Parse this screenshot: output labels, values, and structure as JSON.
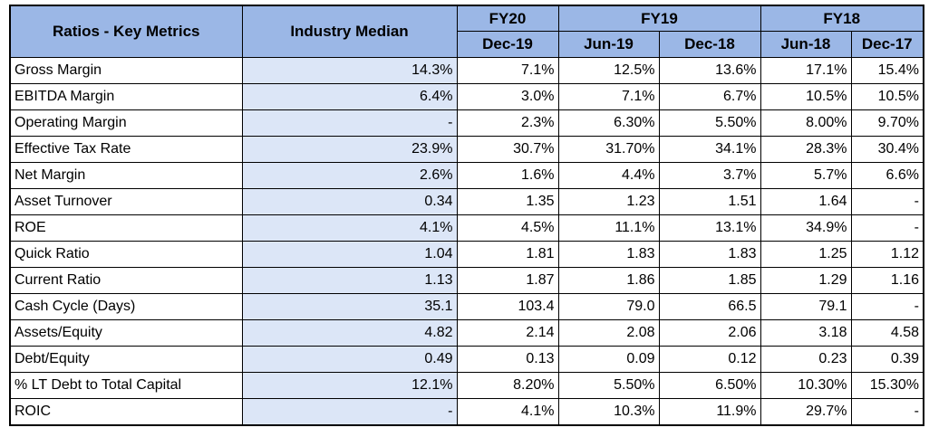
{
  "header": {
    "metric_col": "Ratios - Key Metrics",
    "industry_col": "Industry Median",
    "fiscal_years": [
      {
        "label": "FY20",
        "periods": [
          "Dec-19"
        ]
      },
      {
        "label": "FY19",
        "periods": [
          "Jun-19",
          "Dec-18"
        ]
      },
      {
        "label": "FY18",
        "periods": [
          "Jun-18",
          "Dec-17"
        ]
      }
    ]
  },
  "rows": [
    {
      "metric": "Gross Margin",
      "industry": "14.3%",
      "values": [
        "7.1%",
        "12.5%",
        "13.6%",
        "17.1%",
        "15.4%"
      ]
    },
    {
      "metric": "EBITDA Margin",
      "industry": "6.4%",
      "values": [
        "3.0%",
        "7.1%",
        "6.7%",
        "10.5%",
        "10.5%"
      ]
    },
    {
      "metric": "Operating Margin",
      "industry": "-",
      "values": [
        "2.3%",
        "6.30%",
        "5.50%",
        "8.00%",
        "9.70%"
      ]
    },
    {
      "metric": "Effective Tax Rate",
      "industry": "23.9%",
      "values": [
        "30.7%",
        "31.70%",
        "34.1%",
        "28.3%",
        "30.4%"
      ]
    },
    {
      "metric": "Net Margin",
      "industry": "2.6%",
      "values": [
        "1.6%",
        "4.4%",
        "3.7%",
        "5.7%",
        "6.6%"
      ]
    },
    {
      "metric": "Asset Turnover",
      "industry": "0.34",
      "values": [
        "1.35",
        "1.23",
        "1.51",
        "1.64",
        "-"
      ]
    },
    {
      "metric": "ROE",
      "industry": "4.1%",
      "values": [
        "4.5%",
        "11.1%",
        "13.1%",
        "34.9%",
        "-"
      ]
    },
    {
      "metric": "Quick Ratio",
      "industry": "1.04",
      "values": [
        "1.81",
        "1.83",
        "1.83",
        "1.25",
        "1.12"
      ]
    },
    {
      "metric": "Current Ratio",
      "industry": "1.13",
      "values": [
        "1.87",
        "1.86",
        "1.85",
        "1.29",
        "1.16"
      ]
    },
    {
      "metric": "Cash Cycle (Days)",
      "industry": "35.1",
      "values": [
        "103.4",
        "79.0",
        "66.5",
        "79.1",
        "-"
      ]
    },
    {
      "metric": "Assets/Equity",
      "industry": "4.82",
      "values": [
        "2.14",
        "2.08",
        "2.06",
        "3.18",
        "4.58"
      ]
    },
    {
      "metric": "Debt/Equity",
      "industry": "0.49",
      "values": [
        "0.13",
        "0.09",
        "0.12",
        "0.23",
        "0.39"
      ]
    },
    {
      "metric": "% LT Debt to Total Capital",
      "industry": "12.1%",
      "values": [
        "8.20%",
        "5.50%",
        "6.50%",
        "10.30%",
        "15.30%"
      ]
    },
    {
      "metric": "ROIC",
      "industry": "-",
      "values": [
        "4.1%",
        "10.3%",
        "11.9%",
        "29.7%",
        "-"
      ]
    }
  ],
  "colors": {
    "header_bg": "#9bb7e6",
    "industry_bg": "#dce6f7",
    "border": "#000000"
  }
}
